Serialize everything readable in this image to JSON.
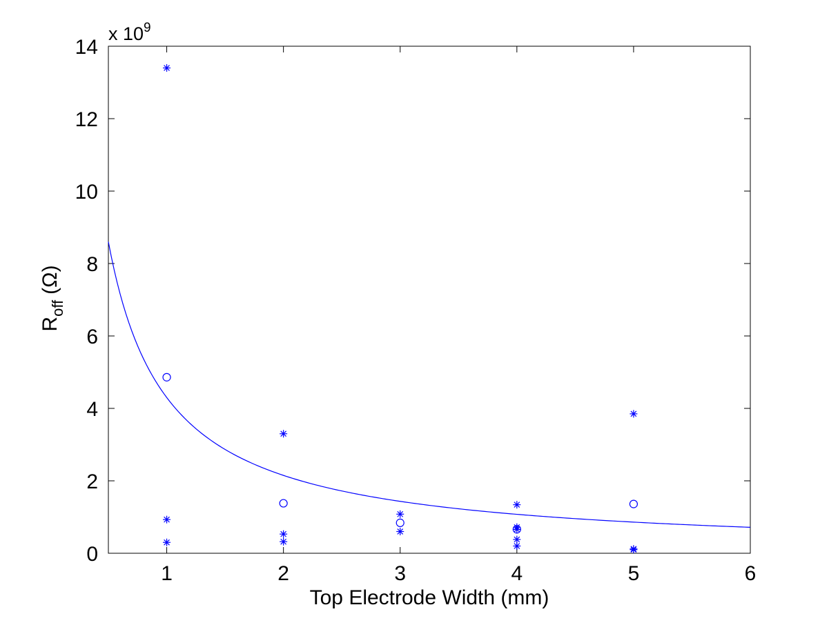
{
  "chart_data": {
    "type": "scatter",
    "title": "",
    "xlabel": "Top Electrode Width (mm)",
    "ylabel": {
      "main": "R",
      "subscript": "off",
      "unit": "(Ω)"
    },
    "y_scale_note": {
      "prefix": "x 10",
      "exponent": "9"
    },
    "xlim": [
      0.5,
      6
    ],
    "ylim": [
      0,
      14
    ],
    "x_ticks": [
      1,
      2,
      3,
      4,
      5,
      6
    ],
    "y_ticks": [
      0,
      2,
      4,
      6,
      8,
      10,
      12,
      14
    ],
    "grid": false,
    "colors": {
      "series": "#0000ff",
      "axes": "#000000",
      "background": "#ffffff"
    },
    "series": [
      {
        "marker": "asterisk",
        "points": [
          {
            "x": 1,
            "y": 13.4
          },
          {
            "x": 1,
            "y": 0.93
          },
          {
            "x": 1,
            "y": 0.3
          },
          {
            "x": 2,
            "y": 3.3
          },
          {
            "x": 2,
            "y": 0.53
          },
          {
            "x": 2,
            "y": 0.32
          },
          {
            "x": 3,
            "y": 1.08
          },
          {
            "x": 3,
            "y": 0.6
          },
          {
            "x": 4,
            "y": 1.34
          },
          {
            "x": 4,
            "y": 0.72
          },
          {
            "x": 4,
            "y": 0.66
          },
          {
            "x": 4,
            "y": 0.38
          },
          {
            "x": 4,
            "y": 0.2
          },
          {
            "x": 5,
            "y": 3.85
          },
          {
            "x": 5,
            "y": 0.12
          },
          {
            "x": 5,
            "y": 0.1
          }
        ]
      },
      {
        "marker": "circle",
        "points": [
          {
            "x": 1,
            "y": 4.86
          },
          {
            "x": 2,
            "y": 1.38
          },
          {
            "x": 3,
            "y": 0.84
          },
          {
            "x": 4,
            "y": 0.66
          },
          {
            "x": 5,
            "y": 1.36
          }
        ]
      },
      {
        "line": "solid",
        "fit": {
          "form": "a / x",
          "a": 4.3
        },
        "x_range": [
          0.5,
          6
        ]
      }
    ]
  }
}
